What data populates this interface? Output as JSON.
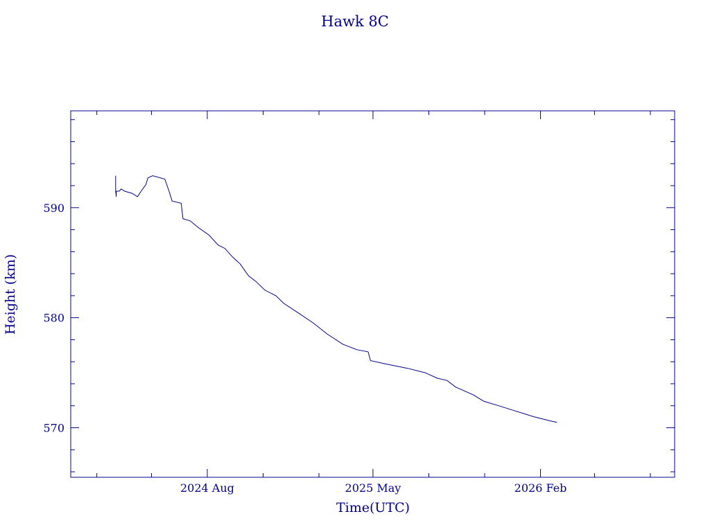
{
  "chart_data": {
    "type": "line",
    "title": "Hawk 8C",
    "xlabel": "Time(UTC)",
    "ylabel": "Height (km)",
    "x_ticks": [
      {
        "label": "2024 Aug",
        "date": "2024-08-01"
      },
      {
        "label": "2025 May",
        "date": "2025-05-01"
      },
      {
        "label": "2026 Feb",
        "date": "2026-02-01"
      }
    ],
    "xlim": [
      "2023-12-20",
      "2026-09-10"
    ],
    "y_ticks": [
      570,
      580,
      590
    ],
    "ylim": [
      565.5,
      598.8
    ],
    "grid": false,
    "color": "#00008b",
    "series": [
      {
        "points": [
          [
            "2024-03-03",
            592.9
          ],
          [
            "2024-03-03",
            591.5
          ],
          [
            "2024-03-04",
            591.0
          ],
          [
            "2024-03-04",
            591.5
          ],
          [
            "2024-03-09",
            591.5
          ],
          [
            "2024-03-12",
            591.7
          ],
          [
            "2024-03-18",
            591.5
          ],
          [
            "2024-03-30",
            591.3
          ],
          [
            "2024-04-08",
            591.0
          ],
          [
            "2024-04-14",
            591.5
          ],
          [
            "2024-04-18",
            591.8
          ],
          [
            "2024-04-22",
            592.1
          ],
          [
            "2024-04-25",
            592.7
          ],
          [
            "2024-05-03",
            592.9
          ],
          [
            "2024-05-23",
            592.6
          ],
          [
            "2024-05-30",
            591.5
          ],
          [
            "2024-06-04",
            590.6
          ],
          [
            "2024-06-19",
            590.4
          ],
          [
            "2024-06-22",
            589.0
          ],
          [
            "2024-07-04",
            588.8
          ],
          [
            "2024-07-17",
            588.2
          ],
          [
            "2024-08-04",
            587.5
          ],
          [
            "2024-08-19",
            586.6
          ],
          [
            "2024-08-30",
            586.3
          ],
          [
            "2024-09-12",
            585.5
          ],
          [
            "2024-09-24",
            584.9
          ],
          [
            "2024-10-08",
            583.8
          ],
          [
            "2024-10-20",
            583.3
          ],
          [
            "2024-11-04",
            582.5
          ],
          [
            "2024-11-22",
            582.0
          ],
          [
            "2024-12-05",
            581.3
          ],
          [
            "2024-12-30",
            580.4
          ],
          [
            "2025-01-23",
            579.5
          ],
          [
            "2025-02-15",
            578.5
          ],
          [
            "2025-03-12",
            577.6
          ],
          [
            "2025-04-04",
            577.1
          ],
          [
            "2025-04-23",
            576.9
          ],
          [
            "2025-04-27",
            576.1
          ],
          [
            "2025-05-22",
            575.8
          ],
          [
            "2025-06-27",
            575.4
          ],
          [
            "2025-07-26",
            575.0
          ],
          [
            "2025-08-15",
            574.5
          ],
          [
            "2025-08-31",
            574.3
          ],
          [
            "2025-09-14",
            573.7
          ],
          [
            "2025-10-13",
            573.0
          ],
          [
            "2025-10-31",
            572.4
          ],
          [
            "2025-11-24",
            572.0
          ],
          [
            "2025-12-23",
            571.5
          ],
          [
            "2026-01-21",
            571.0
          ],
          [
            "2026-02-19",
            570.6
          ],
          [
            "2026-02-28",
            570.5
          ]
        ]
      }
    ]
  }
}
